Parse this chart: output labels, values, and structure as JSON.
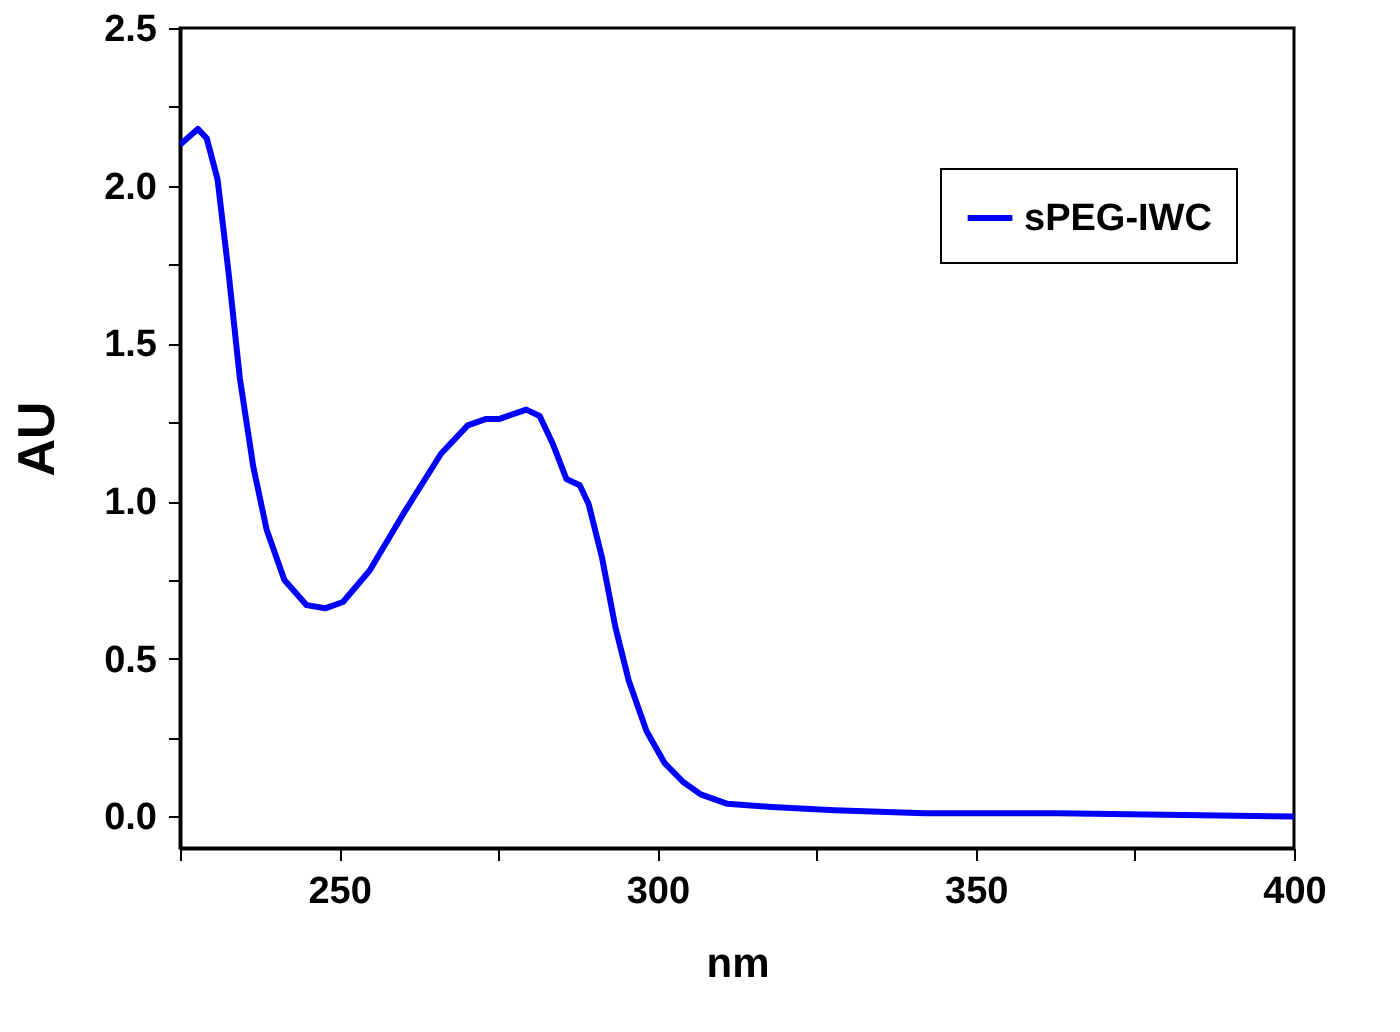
{
  "chart_data": {
    "type": "line",
    "xlabel": "nm",
    "ylabel": "AU",
    "x": [
      225,
      227.8,
      229.2,
      230.9,
      232.6,
      234.4,
      236.5,
      238.6,
      241.4,
      244.9,
      247.8,
      250.6,
      254.8,
      260.4,
      266.0,
      270.2,
      273.0,
      275.1,
      279.4,
      281.5,
      283.6,
      285.7,
      287.8,
      289.2,
      291.3,
      293.4,
      295.5,
      298.3,
      301.1,
      304.0,
      306.8,
      311.0,
      318.0,
      327.8,
      341.9,
      362.9,
      400
    ],
    "series": [
      {
        "name": "sPEG-IWC",
        "color": "#0000ff",
        "values": [
          2.13,
          2.18,
          2.15,
          2.02,
          1.73,
          1.39,
          1.11,
          0.91,
          0.75,
          0.67,
          0.66,
          0.68,
          0.78,
          0.97,
          1.15,
          1.24,
          1.26,
          1.26,
          1.29,
          1.27,
          1.18,
          1.07,
          1.05,
          0.99,
          0.82,
          0.6,
          0.43,
          0.27,
          0.17,
          0.11,
          0.07,
          0.04,
          0.03,
          0.02,
          0.01,
          0.01,
          0.0
        ]
      }
    ],
    "xlim": [
      225,
      400
    ],
    "xticks": [
      {
        "value": 225,
        "label": null
      },
      250,
      {
        "value": 275,
        "label": null
      },
      300,
      {
        "value": 325,
        "label": null
      },
      350,
      {
        "value": 375,
        "label": null
      },
      400
    ],
    "ylim": [
      -0.1,
      2.5
    ],
    "yticks": [
      {
        "value": 0.0,
        "label": "0.0"
      },
      {
        "value": 0.25,
        "label": null
      },
      0.5,
      {
        "value": 0.75,
        "label": null
      },
      {
        "value": 1.0,
        "label": "1.0"
      },
      {
        "value": 1.25,
        "label": null
      },
      1.5,
      {
        "value": 1.75,
        "label": null
      },
      {
        "value": 2.0,
        "label": "2.0"
      },
      {
        "value": 2.25,
        "label": null
      },
      2.5
    ],
    "grid": false,
    "legend": "top right",
    "marker": "none",
    "line_style": "solid"
  }
}
